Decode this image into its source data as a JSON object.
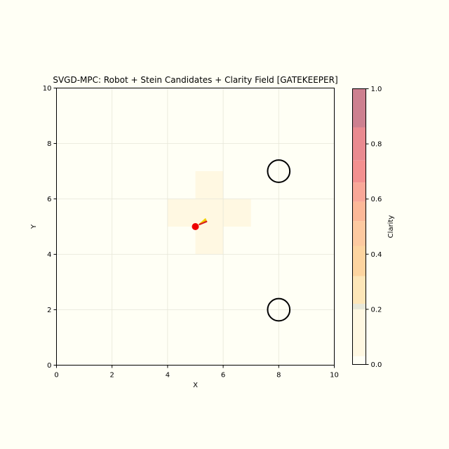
{
  "chart_data": {
    "type": "heatmap",
    "title": "SVGD-MPC: Robot + Stein Candidates + Clarity Field [GATEKEEPER]",
    "xlabel": "X",
    "ylabel": "Y",
    "xlim": [
      0,
      10
    ],
    "ylim": [
      0,
      10
    ],
    "x_ticks": [
      "0",
      "2",
      "4",
      "6",
      "8",
      "10"
    ],
    "y_ticks": [
      "0",
      "2",
      "4",
      "6",
      "8",
      "10"
    ],
    "grid": true,
    "clarity_cells": [
      {
        "x0": 5,
        "x1": 6,
        "y0": 6,
        "y1": 7,
        "value": 0.1
      },
      {
        "x0": 4,
        "x1": 5,
        "y0": 5,
        "y1": 6,
        "value": 0.1
      },
      {
        "x0": 5,
        "x1": 6,
        "y0": 5,
        "y1": 6,
        "value": 0.1
      },
      {
        "x0": 6,
        "x1": 7,
        "y0": 5,
        "y1": 6,
        "value": 0.1
      },
      {
        "x0": 5,
        "x1": 6,
        "y0": 4,
        "y1": 5,
        "value": 0.1
      }
    ],
    "obstacles": [
      {
        "x": 8,
        "y": 7,
        "r": 0.4
      },
      {
        "x": 8,
        "y": 2,
        "r": 0.4
      }
    ],
    "robot": {
      "x": 5,
      "y": 5,
      "color": "#ee0000"
    },
    "stein_candidates": [
      {
        "x1": 5.15,
        "y1": 5.08,
        "x2": 5.38,
        "y2": 5.22,
        "color": "#e8b000"
      },
      {
        "x1": 5.15,
        "y1": 5.08,
        "x2": 5.36,
        "y2": 5.27,
        "color": "#f4d300"
      },
      {
        "x1": 5.15,
        "y1": 5.08,
        "x2": 5.4,
        "y2": 5.18,
        "color": "#d62020"
      }
    ],
    "colorbar": {
      "label": "Clarity",
      "range": [
        0,
        1
      ],
      "ticks": [
        "0.0",
        "0.2",
        "0.4",
        "0.6",
        "0.8",
        "1.0"
      ],
      "bands": [
        {
          "from": 0.0,
          "to": 0.03,
          "color": "#fffff5"
        },
        {
          "from": 0.03,
          "to": 0.2,
          "color": "#fff8e2"
        },
        {
          "from": 0.2,
          "to": 0.22,
          "color": "#e8e8d8"
        },
        {
          "from": 0.22,
          "to": 0.32,
          "color": "#fde6b8"
        },
        {
          "from": 0.32,
          "to": 0.43,
          "color": "#fdd4a0"
        },
        {
          "from": 0.43,
          "to": 0.52,
          "color": "#fdc9a0"
        },
        {
          "from": 0.52,
          "to": 0.59,
          "color": "#fcb898"
        },
        {
          "from": 0.59,
          "to": 0.66,
          "color": "#f9a798"
        },
        {
          "from": 0.66,
          "to": 0.74,
          "color": "#f39090"
        },
        {
          "from": 0.74,
          "to": 0.86,
          "color": "#e98a90"
        },
        {
          "from": 0.86,
          "to": 1.0,
          "color": "#cd8090"
        }
      ]
    },
    "colors": {
      "background": "#fffff5",
      "cell": "#fff8e2",
      "grid": "#e6e6d8",
      "axis": "#000000"
    }
  }
}
